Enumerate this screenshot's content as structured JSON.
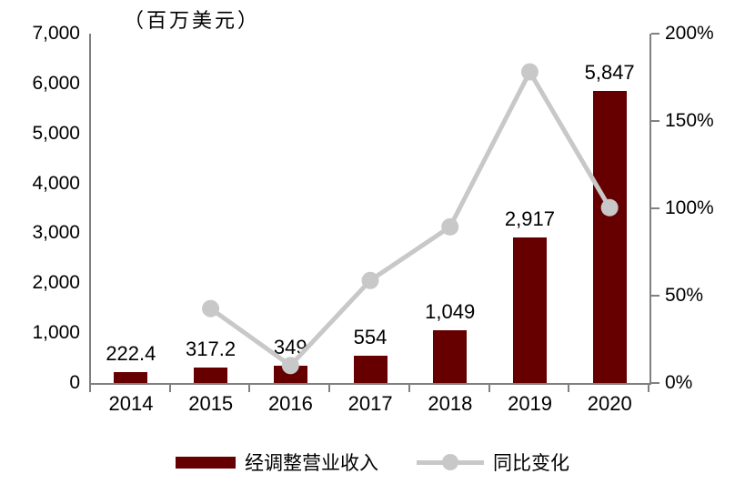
{
  "unit_title": "（百万美元）",
  "colors": {
    "bar": "#660000",
    "line": "#c8c8c8",
    "axis": "#808080",
    "text": "#000000",
    "background": "#ffffff"
  },
  "legend": {
    "revenue_label": "经调整营业收入",
    "yoy_label": "同比变化"
  },
  "chart_data": {
    "type": "bar+line",
    "categories": [
      "2014",
      "2015",
      "2016",
      "2017",
      "2018",
      "2019",
      "2020"
    ],
    "series": [
      {
        "name": "经调整营业收入",
        "type": "bar",
        "axis": "left",
        "unit": "百万美元",
        "values": [
          222.4,
          317.2,
          349,
          554,
          1049,
          2917,
          5847
        ],
        "value_labels": [
          "222.4",
          "317.2",
          "349",
          "554",
          "1,049",
          "2,917",
          "5,847"
        ]
      },
      {
        "name": "同比变化",
        "type": "line",
        "axis": "right",
        "unit": "%",
        "values": [
          null,
          42.6,
          10.0,
          58.7,
          89.4,
          178.1,
          100.4
        ]
      }
    ],
    "left_axis": {
      "title": "（百万美元）",
      "min": 0,
      "max": 7000,
      "tick_labels": [
        "0",
        "1,000",
        "2,000",
        "3,000",
        "4,000",
        "5,000",
        "6,000",
        "7,000"
      ]
    },
    "right_axis": {
      "min": 0,
      "max": 200,
      "tick_labels": [
        "0%",
        "50%",
        "100%",
        "150%",
        "200%"
      ]
    },
    "grid": false,
    "legend_position": "bottom"
  }
}
